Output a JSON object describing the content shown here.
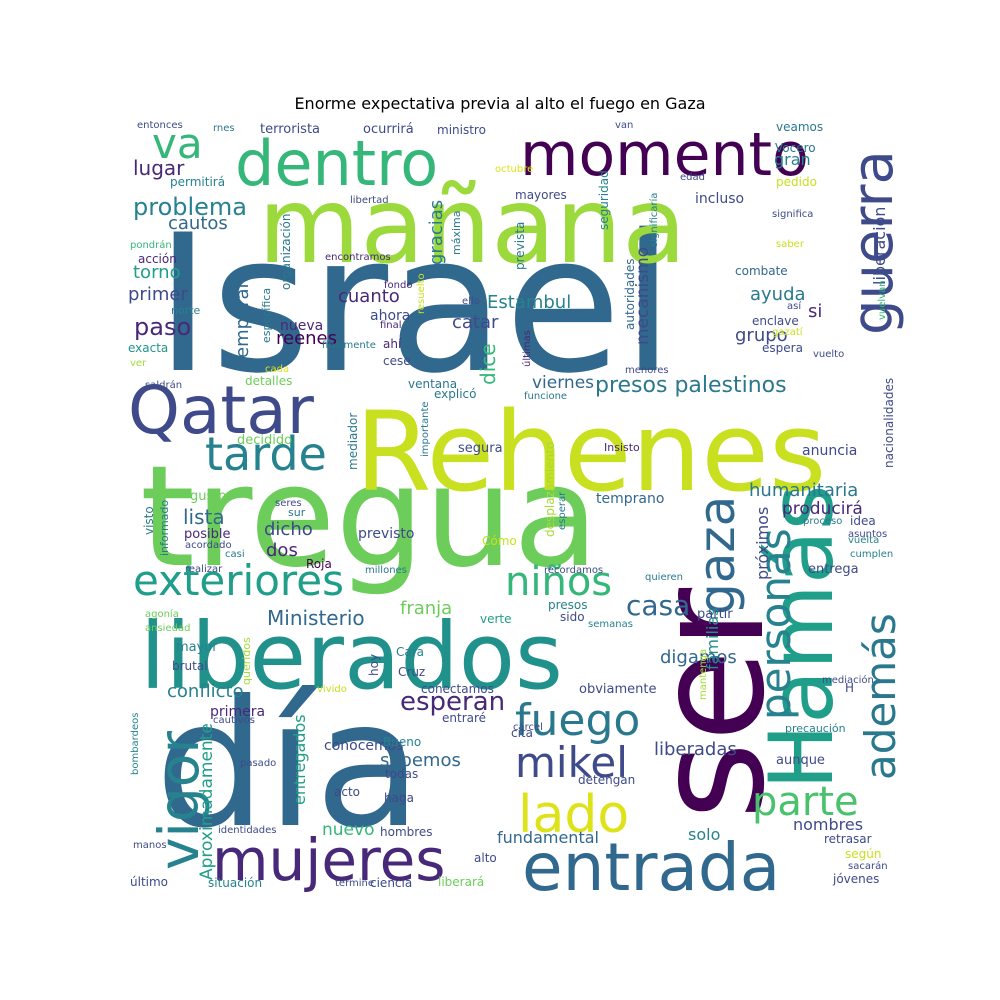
{
  "title": "Enorme expectativa previa al alto el fuego en Gaza",
  "colors": {
    "palette": "viridis",
    "background": "#ffffff"
  },
  "words": [
    {
      "text": "Israel",
      "color": "#31688e"
    },
    {
      "text": "tregua",
      "color": "#6ccd5a"
    },
    {
      "text": "día",
      "color": "#31688e"
    },
    {
      "text": "Rehenes",
      "color": "#c8e020"
    },
    {
      "text": "mañana",
      "color": "#9bd93c"
    },
    {
      "text": "ser",
      "color": "#440154"
    },
    {
      "text": "liberados",
      "color": "#21918c"
    },
    {
      "text": "Hamás",
      "color": "#1f9e89"
    },
    {
      "text": "momento",
      "color": "#440154"
    },
    {
      "text": "dentro",
      "color": "#35b779"
    },
    {
      "text": "entrada",
      "color": "#31688e"
    },
    {
      "text": "Qatar",
      "color": "#3e4a89"
    },
    {
      "text": "mujeres",
      "color": "#482878"
    },
    {
      "text": "guerra",
      "color": "#3e4a89"
    },
    {
      "text": "vigor",
      "color": "#26828e"
    },
    {
      "text": "exteriores",
      "color": "#1f9e89"
    },
    {
      "text": "tarde",
      "color": "#26828e"
    },
    {
      "text": "gaza",
      "color": "#31688e"
    },
    {
      "text": "lado",
      "color": "#dde318"
    },
    {
      "text": "fuego",
      "color": "#2a788e"
    },
    {
      "text": "niños",
      "color": "#35b779"
    },
    {
      "text": "personas",
      "color": "#26828e"
    },
    {
      "text": "además",
      "color": "#2a788e"
    },
    {
      "text": "parte",
      "color": "#4ac16d"
    },
    {
      "text": "mikel",
      "color": "#3e4a89"
    },
    {
      "text": "va",
      "color": "#35b779"
    },
    {
      "text": "presos palestinos",
      "color": "#2a788e"
    },
    {
      "text": "casa",
      "color": "#31688e"
    },
    {
      "text": "esperan",
      "color": "#482878"
    },
    {
      "text": "problema",
      "color": "#26828e"
    },
    {
      "text": "paso",
      "color": "#482878"
    },
    {
      "text": "lugar",
      "color": "#482878"
    },
    {
      "text": "cautos",
      "color": "#31688e"
    },
    {
      "text": "torno",
      "color": "#1f9e89"
    },
    {
      "text": "primer",
      "color": "#3e4a89"
    },
    {
      "text": "temporal",
      "color": "#31688e"
    },
    {
      "text": "Estambul",
      "color": "#26828e"
    },
    {
      "text": "cuanto",
      "color": "#482878"
    },
    {
      "text": "catar",
      "color": "#3e4a89"
    },
    {
      "text": "gracias",
      "color": "#2a788e"
    },
    {
      "text": "mecanismo",
      "color": "#3e4a89"
    },
    {
      "text": "reenes",
      "color": "#440154"
    },
    {
      "text": "nueva",
      "color": "#482878"
    },
    {
      "text": "ahora",
      "color": "#3e4a89"
    },
    {
      "text": "ayuda",
      "color": "#2a788e"
    },
    {
      "text": "si",
      "color": "#482878"
    },
    {
      "text": "grupo",
      "color": "#3e4a89"
    },
    {
      "text": "gran",
      "color": "#26828e"
    },
    {
      "text": "liberación",
      "color": "#3e4a89"
    },
    {
      "text": "viernes",
      "color": "#31688e"
    },
    {
      "text": "dice",
      "color": "#35b779"
    },
    {
      "text": "Ministerio",
      "color": "#31688e"
    },
    {
      "text": "franja",
      "color": "#6ccd5a"
    },
    {
      "text": "conflicto",
      "color": "#26828e"
    },
    {
      "text": "lista",
      "color": "#31688e"
    },
    {
      "text": "dicho",
      "color": "#3e4a89"
    },
    {
      "text": "dos",
      "color": "#482878"
    },
    {
      "text": "humanitaria",
      "color": "#2a788e"
    },
    {
      "text": "producirá",
      "color": "#482878"
    },
    {
      "text": "próximos",
      "color": "#3e4a89"
    },
    {
      "text": "familias",
      "color": "#21918c"
    },
    {
      "text": "digamos",
      "color": "#31688e"
    },
    {
      "text": "liberadas",
      "color": "#3e4a89"
    },
    {
      "text": "sabemos",
      "color": "#31688e"
    },
    {
      "text": "entregados",
      "color": "#1f9e89"
    },
    {
      "text": "Aproximadamente",
      "color": "#1f9e89"
    },
    {
      "text": "nuevo",
      "color": "#35b779"
    },
    {
      "text": "fundamental",
      "color": "#31688e"
    },
    {
      "text": "solo",
      "color": "#26828e"
    },
    {
      "text": "nombres",
      "color": "#3e4a89"
    },
    {
      "text": "primera",
      "color": "#482878"
    },
    {
      "text": "conocemos",
      "color": "#3e4a89"
    },
    {
      "text": "Cruz",
      "color": "#3e4a89"
    },
    {
      "text": "Cara",
      "color": "#26828e"
    },
    {
      "text": "hoy",
      "color": "#3e4a89"
    },
    {
      "text": "mayor",
      "color": "#26828e"
    },
    {
      "text": "verte",
      "color": "#1f9e89"
    },
    {
      "text": "sido",
      "color": "#3e4a89"
    },
    {
      "text": "presos",
      "color": "#26828e"
    },
    {
      "text": "partir",
      "color": "#3e4a89"
    },
    {
      "text": "entrega",
      "color": "#3e4a89"
    },
    {
      "text": "Roja",
      "color": "#440154"
    },
    {
      "text": "previsto",
      "color": "#3e4a89"
    },
    {
      "text": "Cómo",
      "color": "#c8e020"
    },
    {
      "text": "posible",
      "color": "#482878"
    },
    {
      "text": "gusto",
      "color": "#6ccd5a"
    },
    {
      "text": "decidido",
      "color": "#6ccd5a"
    },
    {
      "text": "detalles",
      "color": "#6ccd5a"
    },
    {
      "text": "ventana",
      "color": "#2a788e"
    },
    {
      "text": "explicó",
      "color": "#2a788e"
    },
    {
      "text": "mediador",
      "color": "#2a788e"
    },
    {
      "text": "segura",
      "color": "#3e4a89"
    },
    {
      "text": "anuncia",
      "color": "#3e4a89"
    },
    {
      "text": "temprano",
      "color": "#31688e"
    },
    {
      "text": "desplazamiento",
      "color": "#a5db36"
    },
    {
      "text": "Insisto",
      "color": "#482878"
    },
    {
      "text": "nacionalidades",
      "color": "#3e4a89"
    },
    {
      "text": "ministro",
      "color": "#3e4a89"
    },
    {
      "text": "terrorista",
      "color": "#3e4a89"
    },
    {
      "text": "ocurrirá",
      "color": "#3e4a89"
    },
    {
      "text": "entonces",
      "color": "#3e4a89"
    },
    {
      "text": "rnes",
      "color": "#2a788e"
    },
    {
      "text": "van",
      "color": "#3e4a89"
    },
    {
      "text": "veamos",
      "color": "#2a788e"
    },
    {
      "text": "Vocero",
      "color": "#2a788e"
    },
    {
      "text": "pedido",
      "color": "#c8e020"
    },
    {
      "text": "incluso",
      "color": "#3e4a89"
    },
    {
      "text": "edad",
      "color": "#3e4a89"
    },
    {
      "text": "mayores",
      "color": "#3e4a89"
    },
    {
      "text": "octubre",
      "color": "#dde318"
    },
    {
      "text": "seguridad",
      "color": "#26828e"
    },
    {
      "text": "máxima",
      "color": "#2a788e"
    },
    {
      "text": "prevista",
      "color": "#2a788e"
    },
    {
      "text": "libertad",
      "color": "#3e4a89"
    },
    {
      "text": "permitirá",
      "color": "#26828e"
    },
    {
      "text": "pondrán",
      "color": "#35b779"
    },
    {
      "text": "acción",
      "color": "#482878"
    },
    {
      "text": "organización",
      "color": "#2a788e"
    },
    {
      "text": "encontramos",
      "color": "#482878"
    },
    {
      "text": "fondo",
      "color": "#482878"
    },
    {
      "text": "resuelto",
      "color": "#c8e020"
    },
    {
      "text": "significaría",
      "color": "#26828e"
    },
    {
      "text": "significa",
      "color": "#3e4a89"
    },
    {
      "text": "saber",
      "color": "#c8e020"
    },
    {
      "text": "combate",
      "color": "#31688e"
    },
    {
      "text": "así",
      "color": "#3e4a89"
    },
    {
      "text": "gazatí",
      "color": "#c8e020"
    },
    {
      "text": "enclave",
      "color": "#3e4a89"
    },
    {
      "text": "espera",
      "color": "#3e4a89"
    },
    {
      "text": "vuelto",
      "color": "#3e4a89"
    },
    {
      "text": "vuelvan",
      "color": "#35b779"
    },
    {
      "text": "norte",
      "color": "#26828e"
    },
    {
      "text": "exacta",
      "color": "#21918c"
    },
    {
      "text": "ver",
      "color": "#a5db36"
    },
    {
      "text": "específica",
      "color": "#2a788e"
    },
    {
      "text": "finalmente",
      "color": "#2a788e"
    },
    {
      "text": "final",
      "color": "#482878"
    },
    {
      "text": "ahí",
      "color": "#482878"
    },
    {
      "text": "cese",
      "color": "#3e4a89"
    },
    {
      "text": "ello",
      "color": "#3e4a89"
    },
    {
      "text": "últimas",
      "color": "#482878"
    },
    {
      "text": "autoridades",
      "color": "#31688e"
    },
    {
      "text": "menores",
      "color": "#3e4a89"
    },
    {
      "text": "cada",
      "color": "#dde318"
    },
    {
      "text": "saldrán",
      "color": "#3e4a89"
    },
    {
      "text": "importante",
      "color": "#2a788e"
    },
    {
      "text": "funcione",
      "color": "#2a788e"
    },
    {
      "text": "visto",
      "color": "#2a788e"
    },
    {
      "text": "informado",
      "color": "#2a788e"
    },
    {
      "text": "seres",
      "color": "#3e4a89"
    },
    {
      "text": "sur",
      "color": "#2a788e"
    },
    {
      "text": "acordado",
      "color": "#3e4a89"
    },
    {
      "text": "casi",
      "color": "#2a788e"
    },
    {
      "text": "realizar",
      "color": "#3e4a89"
    },
    {
      "text": "millones",
      "color": "#2a788e"
    },
    {
      "text": "recordamos",
      "color": "#3e4a89"
    },
    {
      "text": "quieren",
      "color": "#2a788e"
    },
    {
      "text": "esperar",
      "color": "#2a788e"
    },
    {
      "text": "proceso",
      "color": "#2a788e"
    },
    {
      "text": "idea",
      "color": "#3e4a89"
    },
    {
      "text": "asuntos",
      "color": "#3e4a89"
    },
    {
      "text": "vuelta",
      "color": "#26828e"
    },
    {
      "text": "cumplen",
      "color": "#26828e"
    },
    {
      "text": "agonía",
      "color": "#6ccd5a"
    },
    {
      "text": "ansiedad",
      "color": "#6ccd5a"
    },
    {
      "text": "semanas",
      "color": "#26828e"
    },
    {
      "text": "brutal",
      "color": "#3e4a89"
    },
    {
      "text": "queridos",
      "color": "#a5db36"
    },
    {
      "text": "vivido",
      "color": "#c8e020"
    },
    {
      "text": "conectamos",
      "color": "#3e4a89"
    },
    {
      "text": "obviamente",
      "color": "#3e4a89"
    },
    {
      "text": "mantenga",
      "color": "#a5db36"
    },
    {
      "text": "mediación",
      "color": "#3e4a89"
    },
    {
      "text": "H",
      "color": "#3e4a89"
    },
    {
      "text": "bombardeos",
      "color": "#26828e"
    },
    {
      "text": "cautivos",
      "color": "#3e4a89"
    },
    {
      "text": "entraré",
      "color": "#3e4a89"
    },
    {
      "text": "cita",
      "color": "#3e4a89"
    },
    {
      "text": "cárcel",
      "color": "#3e4a89"
    },
    {
      "text": "precaución",
      "color": "#26828e"
    },
    {
      "text": "aunque",
      "color": "#3e4a89"
    },
    {
      "text": "Bueno",
      "color": "#26828e"
    },
    {
      "text": "pasado",
      "color": "#3e4a89"
    },
    {
      "text": "todas",
      "color": "#3e4a89"
    },
    {
      "text": "detengan",
      "color": "#3e4a89"
    },
    {
      "text": "acto",
      "color": "#3e4a89"
    },
    {
      "text": "haga",
      "color": "#3e4a89"
    },
    {
      "text": "identidades",
      "color": "#3e4a89"
    },
    {
      "text": "hombres",
      "color": "#3e4a89"
    },
    {
      "text": "retrasar",
      "color": "#3e4a89"
    },
    {
      "text": "según",
      "color": "#c8e020"
    },
    {
      "text": "manos",
      "color": "#3e4a89"
    },
    {
      "text": "termine",
      "color": "#3e4a89"
    },
    {
      "text": "alto",
      "color": "#3e4a89"
    },
    {
      "text": "sacarán",
      "color": "#3e4a89"
    },
    {
      "text": "último",
      "color": "#3e4a89"
    },
    {
      "text": "situación",
      "color": "#26828e"
    },
    {
      "text": "ciencia",
      "color": "#3e4a89"
    },
    {
      "text": "liberará",
      "color": "#6ccd5a"
    },
    {
      "text": "jóvenes",
      "color": "#3e4a89"
    }
  ]
}
